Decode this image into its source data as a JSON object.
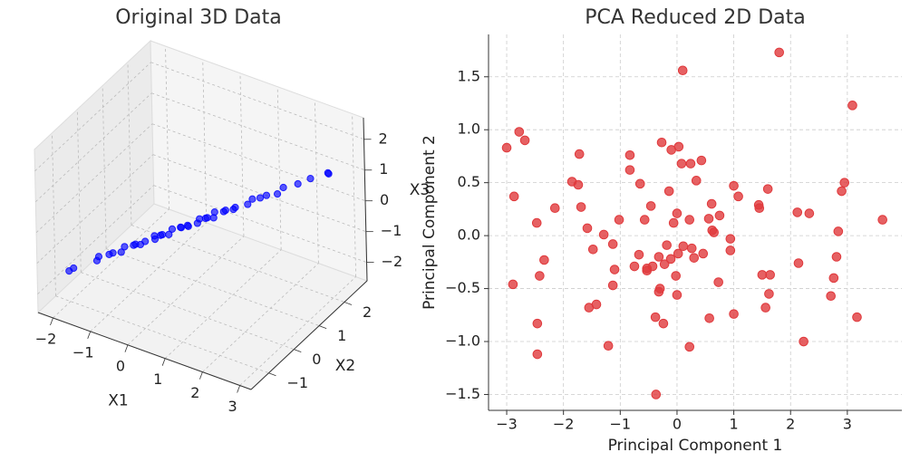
{
  "chart_data": [
    {
      "type": "scatter3d",
      "title": "Original 3D Data",
      "xlabel": "X1",
      "ylabel": "X2",
      "zlabel": "X3",
      "color": "#0000ff",
      "x": [
        -2.1,
        -1.95,
        -1.6,
        -1.5,
        -1.35,
        -1.2,
        -1.1,
        -1.0,
        -0.9,
        -0.8,
        -0.75,
        -0.6,
        -0.5,
        -0.45,
        -0.35,
        -0.3,
        -0.2,
        -0.1,
        0.0,
        0.05,
        0.15,
        0.2,
        0.3,
        0.4,
        0.5,
        0.55,
        0.65,
        0.7,
        0.8,
        0.9,
        1.0,
        1.1,
        1.25,
        1.4,
        1.5,
        1.7,
        1.85,
        2.0,
        2.2,
        2.5,
        2.8,
        2.85
      ],
      "y": [
        -0.89,
        -0.93,
        -0.52,
        -0.59,
        -0.4,
        -0.47,
        -0.29,
        -0.3,
        -0.09,
        -0.16,
        -0.04,
        -0.07,
        0.17,
        0.08,
        0.24,
        0.1,
        0.28,
        0.27,
        0.48,
        0.38,
        0.54,
        0.44,
        0.68,
        0.62,
        0.78,
        0.64,
        0.81,
        0.78,
        0.99,
        0.92,
        1.08,
        1.01,
        1.28,
        1.25,
        1.41,
        1.37,
        1.58,
        1.6,
        1.88,
        1.94,
        2.22,
        2.12
      ],
      "z": [
        -1.74,
        -1.55,
        -1.47,
        -1.24,
        -1.25,
        -1.08,
        -1.15,
        -0.92,
        -0.99,
        -0.86,
        -0.94,
        -0.75,
        -0.82,
        -0.62,
        -0.66,
        -0.55,
        -0.62,
        -0.39,
        -0.46,
        -0.35,
        -0.4,
        -0.27,
        -0.34,
        -0.11,
        -0.15,
        -0.04,
        -0.11,
        0.12,
        0.02,
        0.16,
        0.11,
        0.27,
        0.23,
        0.49,
        0.45,
        0.65,
        0.6,
        0.86,
        0.85,
        1.11,
        1.18,
        1.31
      ],
      "xlim": [
        -2.4,
        3.3
      ],
      "ylim": [
        -1.7,
        2.9
      ],
      "zlim": [
        -2.6,
        2.7
      ],
      "xticks": [
        {
          "value": -2,
          "label": "−2"
        },
        {
          "value": -1,
          "label": "−1"
        },
        0,
        1,
        2,
        3
      ],
      "yticks": [
        {
          "value": -1,
          "label": "−1"
        },
        0,
        1,
        2
      ],
      "zticks": [
        {
          "value": -2,
          "label": "−2"
        },
        {
          "value": -1,
          "label": "−1"
        },
        0,
        1,
        2
      ],
      "grid": true
    },
    {
      "type": "scatter",
      "title": "PCA Reduced 2D Data",
      "xlabel": "Principal Component 1",
      "ylabel": "Principal Component 2",
      "color": "#e0393c",
      "x": [
        -3.0,
        -2.78,
        -2.68,
        -2.87,
        -2.89,
        -2.47,
        -2.34,
        -2.42,
        -2.46,
        -2.46,
        -2.15,
        -1.72,
        -1.85,
        -1.74,
        -1.69,
        -1.58,
        -1.48,
        -1.55,
        -1.42,
        -1.29,
        -1.21,
        -1.13,
        -1.1,
        -1.13,
        -0.83,
        -0.83,
        -0.65,
        -1.02,
        -0.57,
        -0.67,
        -0.75,
        -0.53,
        -0.53,
        -0.43,
        -0.46,
        -0.32,
        -0.3,
        -0.32,
        -0.38,
        -0.24,
        -0.37,
        -0.27,
        -0.1,
        0.03,
        0.1,
        0.08,
        -0.14,
        -0.06,
        0.0,
        -0.22,
        -0.18,
        -0.11,
        0.02,
        0.11,
        -0.02,
        0.0,
        0.24,
        0.43,
        0.34,
        0.22,
        0.26,
        0.3,
        0.46,
        0.22,
        0.56,
        0.61,
        0.75,
        0.65,
        0.62,
        0.73,
        0.57,
        0.94,
        0.94,
        1.0,
        1.0,
        1.08,
        1.44,
        1.45,
        1.6,
        1.5,
        1.64,
        1.62,
        1.56,
        1.8,
        2.12,
        2.33,
        2.14,
        2.23,
        2.71,
        2.76,
        2.81,
        2.84,
        2.9,
        2.95,
        3.09,
        3.17,
        3.62
      ],
      "y": [
        0.83,
        0.98,
        0.9,
        0.37,
        -0.46,
        0.12,
        -0.23,
        -0.38,
        -0.83,
        -1.12,
        0.26,
        0.77,
        0.51,
        0.48,
        0.27,
        0.07,
        -0.13,
        -0.68,
        -0.65,
        0.01,
        -1.04,
        -0.08,
        -0.32,
        -0.47,
        0.76,
        0.62,
        0.49,
        0.15,
        0.15,
        -0.18,
        -0.29,
        -0.33,
        -0.31,
        -0.29,
        0.28,
        -0.2,
        -0.5,
        -0.53,
        -0.77,
        -0.83,
        -1.5,
        0.88,
        0.81,
        0.84,
        1.56,
        0.68,
        0.42,
        0.12,
        0.21,
        -0.27,
        -0.09,
        -0.22,
        -0.17,
        -0.1,
        -0.38,
        -0.56,
        0.68,
        0.71,
        0.52,
        0.15,
        -0.12,
        -0.21,
        -0.17,
        -1.05,
        0.16,
        0.3,
        0.19,
        0.03,
        0.05,
        -0.44,
        -0.78,
        -0.03,
        -0.14,
        -0.74,
        0.47,
        0.37,
        0.29,
        0.26,
        0.44,
        -0.37,
        -0.37,
        -0.55,
        -0.68,
        1.73,
        0.22,
        0.21,
        -0.26,
        -1.0,
        -0.57,
        -0.4,
        -0.2,
        0.04,
        0.42,
        0.5,
        1.23,
        -0.77,
        0.15
      ],
      "xlim": [
        -3.32,
        3.96
      ],
      "ylim": [
        -1.65,
        1.9
      ],
      "xticks": [
        {
          "value": -3,
          "label": "−3"
        },
        {
          "value": -2,
          "label": "−2"
        },
        {
          "value": -1,
          "label": "−1"
        },
        0,
        1,
        2,
        3
      ],
      "yticks": [
        {
          "value": -1.5,
          "label": "−1.5"
        },
        {
          "value": -1,
          "label": "−1.0"
        },
        {
          "value": -0.5,
          "label": "−0.5"
        },
        {
          "value": 0,
          "label": "0.0"
        },
        0.5,
        {
          "value": 1,
          "label": "1.0"
        },
        1.5
      ],
      "grid": true
    }
  ]
}
